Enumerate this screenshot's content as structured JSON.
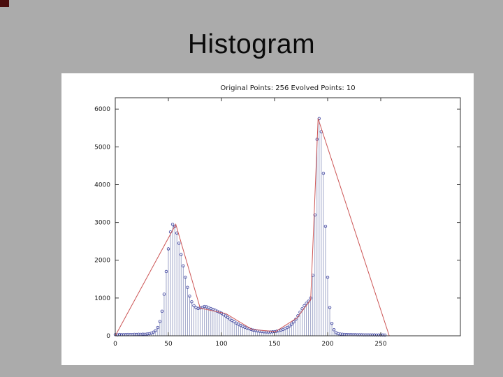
{
  "slide": {
    "title": "Histogram"
  },
  "figure": {
    "title": "Original Points: 256  Evolved Points: 10"
  },
  "chart_data": {
    "type": "bar",
    "subtype": "stem-histogram-with-evolved-line",
    "title": "Original Points: 256  Evolved Points: 10",
    "xlabel": "",
    "ylabel": "",
    "xlim": [
      0,
      325
    ],
    "ylim": [
      0,
      6300
    ],
    "x_ticks": [
      0,
      50,
      100,
      150,
      200,
      250
    ],
    "y_ticks": [
      0,
      1000,
      2000,
      3000,
      4000,
      5000,
      6000
    ],
    "grid": false,
    "legend": "none",
    "original_points_count": 256,
    "evolved_points_count": 10,
    "stems": {
      "name": "Original histogram (stem plot with circle markers)",
      "x_start": 0,
      "x_step": 2,
      "values": [
        30,
        25,
        35,
        28,
        32,
        30,
        36,
        30,
        34,
        38,
        35,
        40,
        38,
        42,
        40,
        48,
        55,
        70,
        95,
        140,
        220,
        380,
        650,
        1100,
        1700,
        2300,
        2750,
        2950,
        2900,
        2720,
        2450,
        2150,
        1850,
        1550,
        1280,
        1050,
        900,
        800,
        745,
        725,
        735,
        755,
        775,
        765,
        745,
        720,
        700,
        675,
        650,
        625,
        600,
        560,
        525,
        485,
        445,
        405,
        370,
        335,
        305,
        275,
        248,
        225,
        205,
        185,
        168,
        152,
        140,
        128,
        120,
        112,
        106,
        102,
        100,
        100,
        104,
        110,
        120,
        132,
        148,
        168,
        192,
        222,
        258,
        305,
        365,
        440,
        530,
        625,
        715,
        795,
        860,
        915,
        1000,
        1600,
        3200,
        5200,
        5750,
        5400,
        4300,
        2900,
        1550,
        750,
        330,
        160,
        85,
        55,
        45,
        40,
        36,
        33,
        31,
        30,
        29,
        28,
        27,
        26,
        26,
        25,
        25,
        24,
        24,
        23,
        23,
        22,
        22,
        21,
        21,
        20
      ]
    },
    "evolved_line": {
      "name": "Evolved points (piecewise linear fit)",
      "points": [
        [
          0,
          0
        ],
        [
          57,
          2950
        ],
        [
          80,
          730
        ],
        [
          104,
          590
        ],
        [
          129,
          165
        ],
        [
          151,
          112
        ],
        [
          171,
          470
        ],
        [
          184,
          950
        ],
        [
          191,
          5750
        ],
        [
          258,
          0
        ]
      ]
    },
    "colors": {
      "stem": "#8890bb",
      "marker": "#3a3f9e",
      "evolved_line": "#cc5555",
      "axis": "#333333",
      "tick_label": "#1a1a1a",
      "figure_background": "#ffffff",
      "slide_background": "#ababab"
    }
  }
}
